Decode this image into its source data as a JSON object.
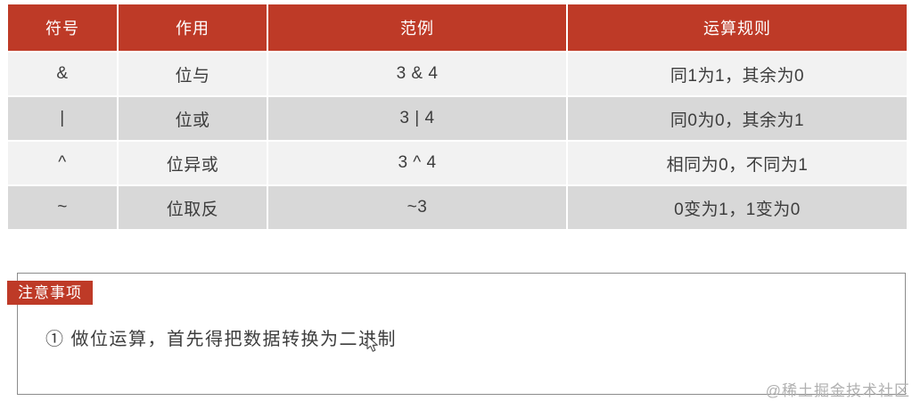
{
  "colors": {
    "header_bg": "#be3a27",
    "header_text": "#ffffff",
    "row_light": "#f2f2f2",
    "row_dark": "#d8d8d8",
    "body_text": "#3d3d3d",
    "badge_bg": "#be3a27",
    "note_border": "#8c8c8c",
    "watermark_text": "#b0b0b0"
  },
  "table": {
    "headers": [
      "符号",
      "作用",
      "范例",
      "运算规则"
    ],
    "rows": [
      {
        "symbol": "&",
        "function": "位与",
        "example": "3 & 4",
        "rule": "同1为1，其余为0"
      },
      {
        "symbol": "|",
        "function": "位或",
        "example": "3 | 4",
        "rule": "同0为0，其余为1"
      },
      {
        "symbol": "^",
        "function": "位异或",
        "example": "3 ^ 4",
        "rule": "相同为0，不同为1"
      },
      {
        "symbol": "~",
        "function": "位取反",
        "example": "~3",
        "rule": "0变为1，1变为0"
      }
    ]
  },
  "note": {
    "badge_label": "注意事项",
    "line1": "① 做位运算，首先得把数据转换为二进制"
  },
  "watermark": "@稀土掘金技术社区",
  "icons": {
    "cursor": "arrow-pointer"
  }
}
